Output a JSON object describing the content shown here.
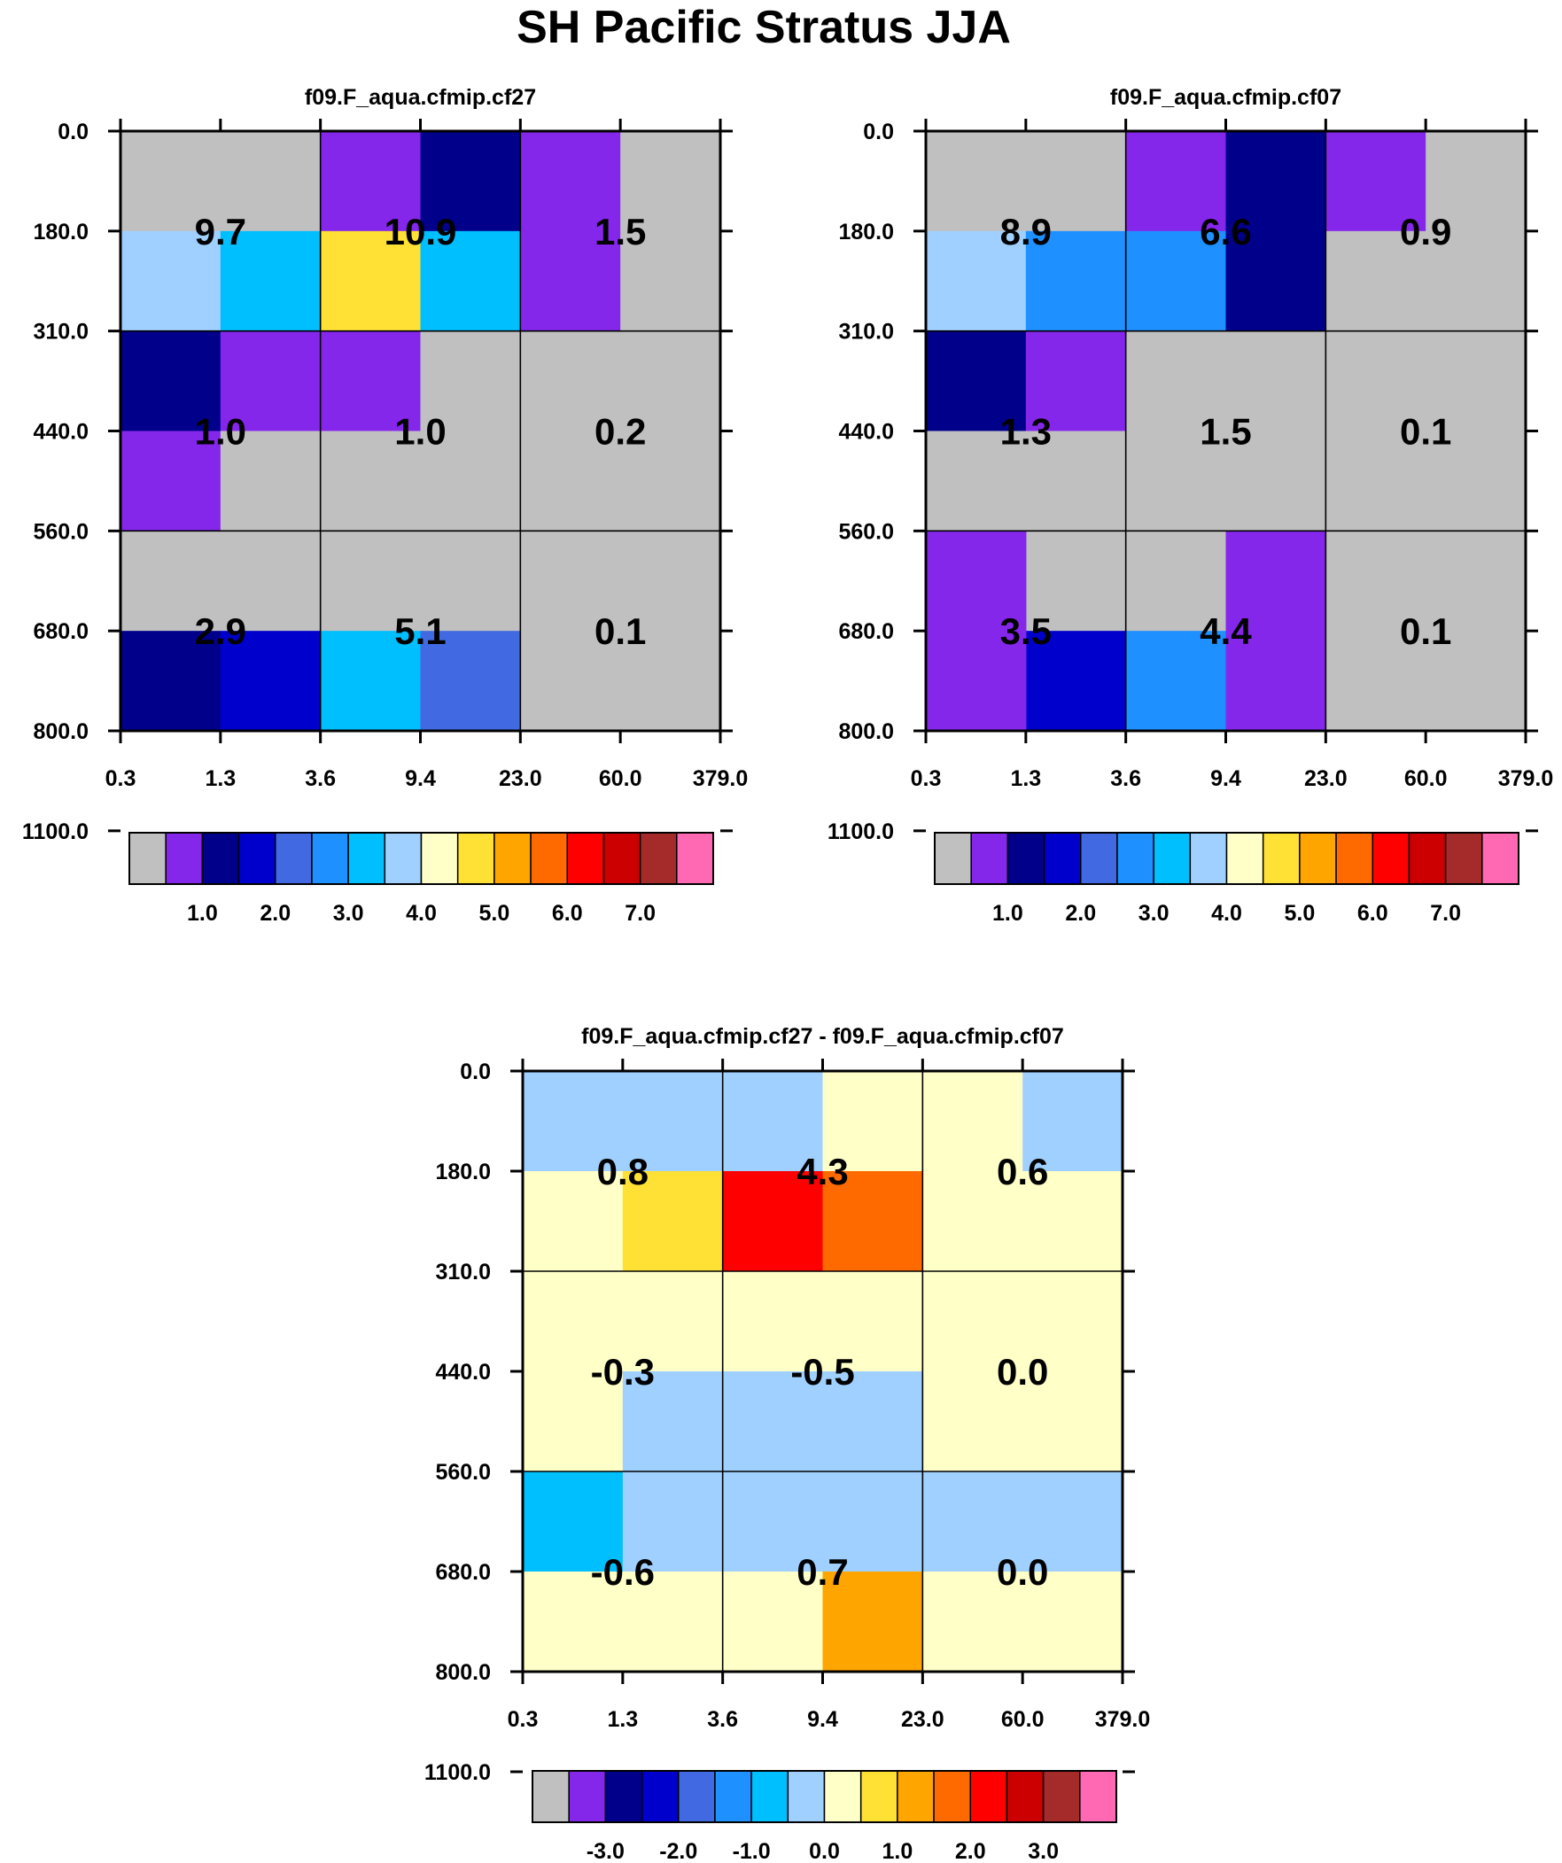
{
  "figure_title": "SH Pacific Stratus JJA",
  "chart_data": [
    {
      "type": "heatmap",
      "title": "f09.F_aqua.cfmip.cf27",
      "x_tick_labels": [
        "0.3",
        "1.3",
        "3.6",
        "9.4",
        "23.0",
        "60.0",
        "379.0"
      ],
      "y_tick_labels": [
        "0.0",
        "180.0",
        "310.0",
        "440.0",
        "560.0",
        "680.0",
        "800.0",
        "1100.0"
      ],
      "cells": [
        [
          "missing",
          "missing",
          "c1",
          "c2",
          "c1",
          "missing"
        ],
        [
          "c7",
          "c6",
          "c9",
          "c6",
          "c1",
          "missing"
        ],
        [
          "c2",
          "c1",
          "c1",
          "missing",
          "missing",
          "missing"
        ],
        [
          "c1",
          "missing",
          "missing",
          "missing",
          "missing",
          "missing"
        ],
        [
          "missing",
          "missing",
          "missing",
          "missing",
          "missing",
          "missing"
        ],
        [
          "c2",
          "c3",
          "c6",
          "c4",
          "missing",
          "missing"
        ]
      ],
      "block_values": [
        [
          "9.7",
          "10.9",
          "1.5"
        ],
        [
          "1.0",
          "1.0",
          "0.2"
        ],
        [
          "2.9",
          "5.1",
          "0.1"
        ]
      ],
      "colorbar": {
        "colors": [
          "c0",
          "c1",
          "c2",
          "c3",
          "c4",
          "c5",
          "c6",
          "c7",
          "c8",
          "c9",
          "c10",
          "c11",
          "c12",
          "c13",
          "c14",
          "c15"
        ],
        "labels": [
          "1.0",
          "2.0",
          "3.0",
          "4.0",
          "5.0",
          "6.0",
          "7.0"
        ],
        "label_boundaries": [
          2,
          4,
          6,
          8,
          10,
          12,
          14
        ]
      }
    },
    {
      "type": "heatmap",
      "title": "f09.F_aqua.cfmip.cf07",
      "x_tick_labels": [
        "0.3",
        "1.3",
        "3.6",
        "9.4",
        "23.0",
        "60.0",
        "379.0"
      ],
      "y_tick_labels": [
        "0.0",
        "180.0",
        "310.0",
        "440.0",
        "560.0",
        "680.0",
        "800.0",
        "1100.0"
      ],
      "cells": [
        [
          "missing",
          "missing",
          "c1",
          "c2",
          "c1",
          "missing"
        ],
        [
          "c7",
          "c5",
          "c5",
          "c2",
          "missing",
          "missing"
        ],
        [
          "c2",
          "c1",
          "missing",
          "missing",
          "missing",
          "missing"
        ],
        [
          "missing",
          "missing",
          "missing",
          "missing",
          "missing",
          "missing"
        ],
        [
          "missing",
          "missing",
          "missing",
          "c1",
          "missing",
          "missing"
        ],
        [
          "c1",
          "c3",
          "c5",
          "c1",
          "missing",
          "missing"
        ]
      ],
      "overlay_cells": [
        {
          "row": 5,
          "col": 0,
          "rows": 2,
          "color": "c1"
        }
      ],
      "block_values": [
        [
          "8.9",
          "6.6",
          "0.9"
        ],
        [
          "1.3",
          "1.5",
          "0.1"
        ],
        [
          "3.5",
          "4.4",
          "0.1"
        ]
      ],
      "colorbar": {
        "colors": [
          "c0",
          "c1",
          "c2",
          "c3",
          "c4",
          "c5",
          "c6",
          "c7",
          "c8",
          "c9",
          "c10",
          "c11",
          "c12",
          "c13",
          "c14",
          "c15"
        ],
        "labels": [
          "1.0",
          "2.0",
          "3.0",
          "4.0",
          "5.0",
          "6.0",
          "7.0"
        ],
        "label_boundaries": [
          2,
          4,
          6,
          8,
          10,
          12,
          14
        ]
      }
    },
    {
      "type": "heatmap",
      "title": "f09.F_aqua.cfmip.cf27 - f09.F_aqua.cfmip.cf07",
      "x_tick_labels": [
        "0.3",
        "1.3",
        "3.6",
        "9.4",
        "23.0",
        "60.0",
        "379.0"
      ],
      "y_tick_labels": [
        "0.0",
        "180.0",
        "310.0",
        "440.0",
        "560.0",
        "680.0",
        "800.0",
        "1100.0"
      ],
      "cells": [
        [
          "c7",
          "c7",
          "c7",
          "c8",
          "c8",
          "c7"
        ],
        [
          "c8",
          "c9",
          "c12",
          "c11",
          "c8",
          "c8"
        ],
        [
          "c8",
          "c8",
          "c8",
          "c8",
          "c8",
          "c8"
        ],
        [
          "c8",
          "c7",
          "c7",
          "c7",
          "c8",
          "c8"
        ],
        [
          "c7",
          "c7",
          "c7",
          "c7",
          "c8",
          "c8"
        ],
        [
          "c8",
          "c8",
          "c8",
          "c10",
          "c8",
          "c8"
        ]
      ],
      "overlay_cells": [
        {
          "row": 5,
          "col": 0,
          "rows": 1,
          "color": "c6"
        },
        {
          "row": 5,
          "col": 1,
          "rows": 1,
          "color": "c7"
        },
        {
          "row": 5,
          "col": 2,
          "rows": 1,
          "color": "c7"
        },
        {
          "row": 5,
          "col": 3,
          "rows": 1,
          "color": "c7"
        },
        {
          "row": 5,
          "col": 4,
          "rows": 1,
          "color": "c7"
        },
        {
          "row": 5,
          "col": 5,
          "rows": 1,
          "color": "c7"
        }
      ],
      "block_values": [
        [
          "0.8",
          "4.3",
          "0.6"
        ],
        [
          "-0.3",
          "-0.5",
          "0.0"
        ],
        [
          "-0.6",
          "0.7",
          "0.0"
        ]
      ],
      "colorbar": {
        "colors": [
          "c0",
          "c1",
          "c2",
          "c3",
          "c4",
          "c5",
          "c6",
          "c7",
          "c8",
          "c9",
          "c10",
          "c11",
          "c12",
          "c13",
          "c14",
          "c15"
        ],
        "labels": [
          "-3.0",
          "-2.0",
          "-1.0",
          "0.0",
          "1.0",
          "2.0",
          "3.0"
        ],
        "label_boundaries": [
          2,
          4,
          6,
          8,
          10,
          12,
          14
        ]
      }
    }
  ],
  "colors": {
    "c0": "#c0c0c0",
    "c1": "#8527eb",
    "c2": "#00008b",
    "c3": "#0000cd",
    "c4": "#4169e1",
    "c5": "#1e90ff",
    "c6": "#00bfff",
    "c7": "#a0d0ff",
    "c8": "#ffffc8",
    "c9": "#ffe135",
    "c10": "#ffa500",
    "c11": "#ff6a00",
    "c12": "#ff0000",
    "c13": "#cc0000",
    "c14": "#a52a2a",
    "c15": "#ff69b4",
    "missing": "#c0c0c0"
  }
}
